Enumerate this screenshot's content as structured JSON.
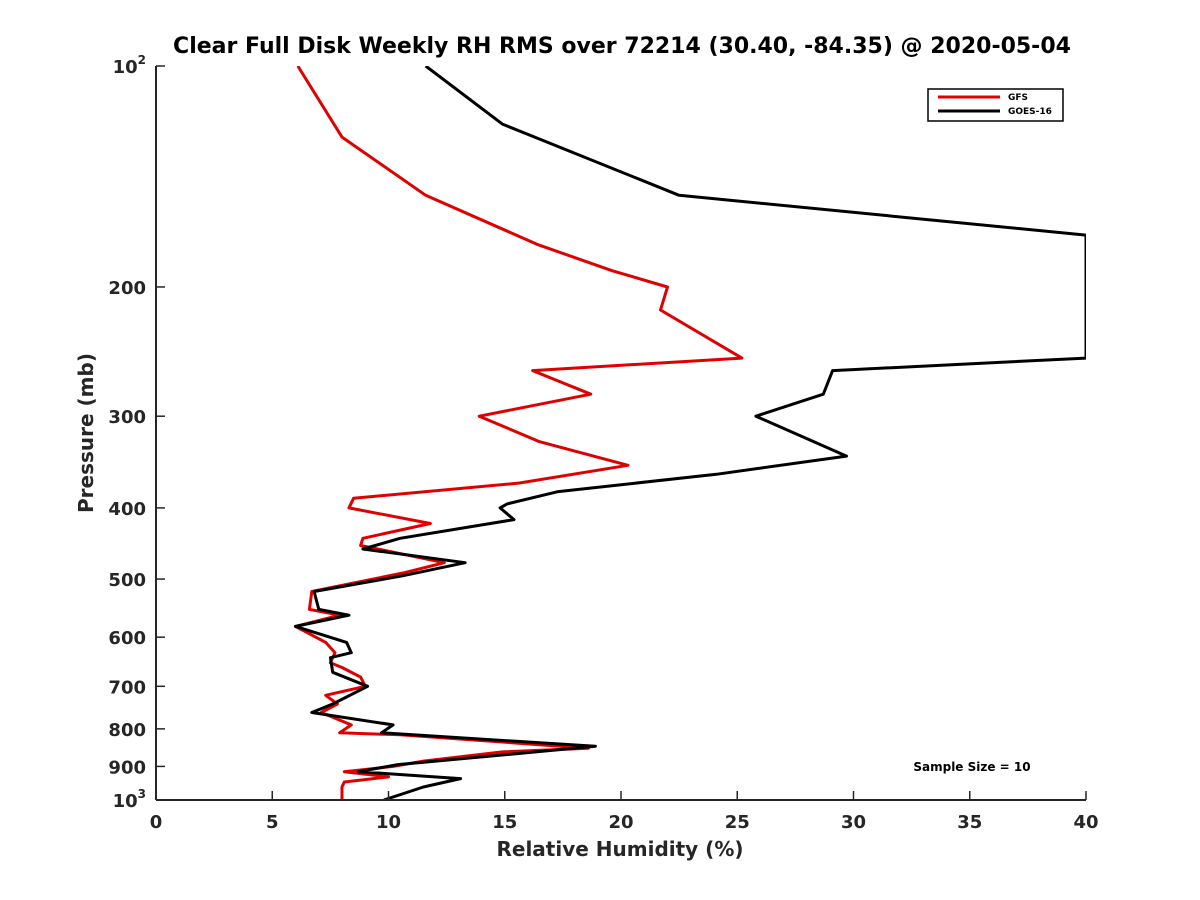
{
  "chart_data": {
    "type": "line",
    "title": "Clear Full Disk Weekly RH RMS over 72214 (30.40, -84.35) @ 2020-05-04",
    "xlabel": "Relative Humidity (%)",
    "ylabel": "Pressure (mb)",
    "xlim": [
      0,
      40
    ],
    "ylim": [
      100,
      1000
    ],
    "yscale": "log",
    "y_reversed": true,
    "grid": false,
    "legend_position": "top-right",
    "x_ticks": [
      "0",
      "5",
      "10",
      "15",
      "20",
      "25",
      "30",
      "35",
      "40"
    ],
    "y_ticks": [
      {
        "value": 100,
        "base": "10",
        "exp": "2"
      },
      {
        "value": 200,
        "label": "200"
      },
      {
        "value": 300,
        "label": "300"
      },
      {
        "value": 400,
        "label": "400"
      },
      {
        "value": 500,
        "label": "500"
      },
      {
        "value": 600,
        "label": "600"
      },
      {
        "value": 700,
        "label": "700"
      },
      {
        "value": 800,
        "label": "800"
      },
      {
        "value": 900,
        "label": "900"
      },
      {
        "value": 1000,
        "base": "10",
        "exp": "3"
      }
    ],
    "annotation": "Sample Size = 10",
    "series": [
      {
        "name": "GFS",
        "color": "#e00000",
        "points": [
          [
            6.1,
            100
          ],
          [
            8.0,
            125
          ],
          [
            11.6,
            150
          ],
          [
            16.4,
            175
          ],
          [
            19.6,
            190
          ],
          [
            22.0,
            200
          ],
          [
            21.7,
            215
          ],
          [
            25.2,
            250
          ],
          [
            16.2,
            260
          ],
          [
            18.7,
            280
          ],
          [
            13.9,
            300
          ],
          [
            16.5,
            325
          ],
          [
            20.3,
            350
          ],
          [
            15.6,
            370
          ],
          [
            8.5,
            388
          ],
          [
            8.3,
            400
          ],
          [
            11.8,
            420
          ],
          [
            8.9,
            440
          ],
          [
            8.8,
            450
          ],
          [
            12.4,
            475
          ],
          [
            10.7,
            490
          ],
          [
            6.7,
            520
          ],
          [
            6.6,
            550
          ],
          [
            7.9,
            560
          ],
          [
            6.0,
            580
          ],
          [
            7.3,
            610
          ],
          [
            7.7,
            630
          ],
          [
            7.5,
            650
          ],
          [
            8.0,
            660
          ],
          [
            8.8,
            680
          ],
          [
            9.0,
            700
          ],
          [
            7.3,
            720
          ],
          [
            7.8,
            740
          ],
          [
            7.1,
            760
          ],
          [
            8.4,
            790
          ],
          [
            7.9,
            810
          ],
          [
            10.5,
            815
          ],
          [
            18.6,
            850
          ],
          [
            14.9,
            860
          ],
          [
            11.5,
            885
          ],
          [
            10.2,
            900
          ],
          [
            8.1,
            915
          ],
          [
            10.0,
            930
          ],
          [
            8.1,
            945
          ],
          [
            8.0,
            960
          ],
          [
            8.0,
            1000
          ]
        ]
      },
      {
        "name": "GOES-16",
        "color": "#000000",
        "points": [
          [
            11.6,
            100
          ],
          [
            14.9,
            120
          ],
          [
            22.5,
            150
          ],
          [
            40.0,
            170
          ],
          [
            40.0,
            250
          ],
          [
            29.1,
            260
          ],
          [
            28.7,
            280
          ],
          [
            25.8,
            300
          ],
          [
            29.7,
            340
          ],
          [
            24.1,
            360
          ],
          [
            17.3,
            380
          ],
          [
            15.1,
            395
          ],
          [
            14.8,
            400
          ],
          [
            15.4,
            415
          ],
          [
            10.5,
            440
          ],
          [
            8.9,
            455
          ],
          [
            13.3,
            475
          ],
          [
            10.6,
            495
          ],
          [
            6.8,
            520
          ],
          [
            7.0,
            550
          ],
          [
            8.3,
            560
          ],
          [
            6.0,
            580
          ],
          [
            8.2,
            610
          ],
          [
            8.4,
            630
          ],
          [
            7.5,
            640
          ],
          [
            7.6,
            670
          ],
          [
            9.1,
            700
          ],
          [
            7.6,
            740
          ],
          [
            6.7,
            760
          ],
          [
            10.2,
            790
          ],
          [
            9.7,
            810
          ],
          [
            18.9,
            845
          ],
          [
            12.9,
            880
          ],
          [
            10.4,
            895
          ],
          [
            8.7,
            915
          ],
          [
            13.1,
            935
          ],
          [
            11.5,
            960
          ],
          [
            9.8,
            1000
          ]
        ]
      }
    ]
  }
}
